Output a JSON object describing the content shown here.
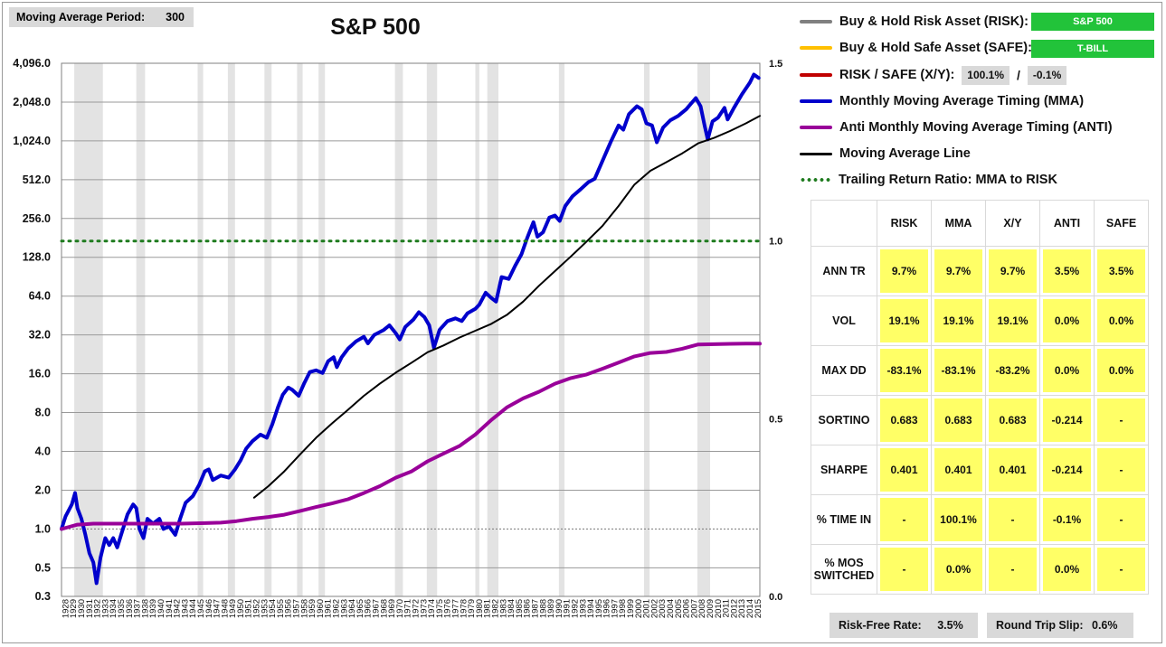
{
  "header": {
    "moving_average_label": "Moving Average Period:",
    "moving_average_value": "300",
    "title": "S&P 500"
  },
  "legend": {
    "items": [
      {
        "label": "Buy & Hold Risk Asset (RISK):",
        "color": "#808080",
        "style": "solid"
      },
      {
        "label": "Buy & Hold Safe Asset (SAFE):",
        "color": "#ffc000",
        "style": "solid"
      },
      {
        "label": "RISK / SAFE (X/Y):",
        "color": "#c00000",
        "style": "solid"
      },
      {
        "label": "Monthly Moving Average Timing (MMA)",
        "color": "#0000cc",
        "style": "solid"
      },
      {
        "label": "Anti Monthly Moving Average Timing (ANTI)",
        "color": "#990099",
        "style": "solid"
      },
      {
        "label": "Moving Average Line",
        "color": "#000000",
        "style": "solid"
      },
      {
        "label": "Trailing Return Ratio: MMA to RISK",
        "color": "#1e7b1e",
        "style": "dotted"
      }
    ],
    "risk_asset": "S&P 500",
    "safe_asset": "T-BILL",
    "xy_risk_pct": "100.1%",
    "xy_safe_pct": "-0.1%",
    "xy_separator": "/"
  },
  "stats": {
    "columns": [
      "RISK",
      "MMA",
      "X/Y",
      "ANTI",
      "SAFE"
    ],
    "rows": [
      {
        "label": "ANN TR",
        "values": [
          "9.7%",
          "9.7%",
          "9.7%",
          "3.5%",
          "3.5%"
        ]
      },
      {
        "label": "VOL",
        "values": [
          "19.1%",
          "19.1%",
          "19.1%",
          "0.0%",
          "0.0%"
        ]
      },
      {
        "label": "MAX DD",
        "values": [
          "-83.1%",
          "-83.1%",
          "-83.2%",
          "0.0%",
          "0.0%"
        ]
      },
      {
        "label": "SORTINO",
        "values": [
          "0.683",
          "0.683",
          "0.683",
          "-0.214",
          "-"
        ]
      },
      {
        "label": "SHARPE",
        "values": [
          "0.401",
          "0.401",
          "0.401",
          "-0.214",
          "-"
        ]
      },
      {
        "label": "% TIME IN",
        "values": [
          "-",
          "100.1%",
          "-",
          "-0.1%",
          "-"
        ]
      },
      {
        "label": "% MOS SWITCHED",
        "values": [
          "-",
          "0.0%",
          "-",
          "0.0%",
          "-"
        ]
      }
    ]
  },
  "footer": {
    "risk_free_label": "Risk-Free Rate:",
    "risk_free_value": "3.5%",
    "slip_label": "Round Trip Slip:",
    "slip_value": "0.6%"
  },
  "chart_data": {
    "type": "line",
    "y_scale": "log2",
    "y_ticks": [
      "0.3",
      "0.5",
      "1.0",
      "2.0",
      "4.0",
      "8.0",
      "16.0",
      "32.0",
      "64.0",
      "128.0",
      "256.0",
      "512.0",
      "1,024.0",
      "2,048.0",
      "4,096.0"
    ],
    "y_tick_values": [
      0.3,
      0.5,
      1,
      2,
      4,
      8,
      16,
      32,
      64,
      128,
      256,
      512,
      1024,
      2048,
      4096
    ],
    "y2_ticks": [
      "0.0",
      "0.5",
      "1.0",
      "1.5"
    ],
    "y2_tick_values": [
      0,
      0.5,
      1.0,
      1.5
    ],
    "ylim": [
      0.3,
      4096
    ],
    "y2lim": [
      0,
      1.5
    ],
    "xlim": [
      1928,
      2015.75
    ],
    "x_ticks": [
      1928,
      1929,
      1930,
      1931,
      1932,
      1933,
      1934,
      1935,
      1936,
      1937,
      1938,
      1939,
      1940,
      1941,
      1942,
      1943,
      1944,
      1945,
      1946,
      1947,
      1948,
      1949,
      1950,
      1951,
      1952,
      1953,
      1954,
      1955,
      1956,
      1957,
      1958,
      1959,
      1960,
      1961,
      1962,
      1963,
      1964,
      1965,
      1966,
      1967,
      1968,
      1969,
      1970,
      1971,
      1972,
      1973,
      1974,
      1975,
      1976,
      1977,
      1978,
      1979,
      1980,
      1981,
      1982,
      1983,
      1984,
      1985,
      1986,
      1987,
      1988,
      1989,
      1990,
      1991,
      1992,
      1993,
      1994,
      1995,
      1996,
      1997,
      1998,
      1999,
      2000,
      2001,
      2002,
      2003,
      2004,
      2005,
      2006,
      2007,
      2008,
      2009,
      2010,
      2011,
      2012,
      2013,
      2014,
      2015
    ],
    "recessions": [
      [
        1929.6,
        1933.2
      ],
      [
        1937.4,
        1938.5
      ],
      [
        1945.1,
        1945.8
      ],
      [
        1948.9,
        1949.8
      ],
      [
        1953.5,
        1954.4
      ],
      [
        1957.6,
        1958.3
      ],
      [
        1960.3,
        1961.1
      ],
      [
        1969.9,
        1970.9
      ],
      [
        1973.9,
        1975.2
      ],
      [
        1980.0,
        1980.5
      ],
      [
        1981.5,
        1982.9
      ],
      [
        1990.5,
        1991.2
      ],
      [
        2001.2,
        2001.9
      ],
      [
        2007.9,
        2009.5
      ]
    ],
    "series": [
      {
        "name": "Monthly Moving Average Timing (MMA)",
        "color": "#0000cc",
        "axis": "left",
        "points": [
          [
            1928,
            1.0
          ],
          [
            1928.5,
            1.25
          ],
          [
            1929.3,
            1.55
          ],
          [
            1929.7,
            1.9
          ],
          [
            1930.0,
            1.45
          ],
          [
            1930.5,
            1.2
          ],
          [
            1931.0,
            0.9
          ],
          [
            1931.5,
            0.65
          ],
          [
            1932.0,
            0.55
          ],
          [
            1932.4,
            0.38
          ],
          [
            1932.9,
            0.6
          ],
          [
            1933.5,
            0.85
          ],
          [
            1934.0,
            0.75
          ],
          [
            1934.5,
            0.85
          ],
          [
            1935.0,
            0.72
          ],
          [
            1935.6,
            0.95
          ],
          [
            1936.3,
            1.3
          ],
          [
            1937.0,
            1.55
          ],
          [
            1937.4,
            1.45
          ],
          [
            1937.8,
            1.0
          ],
          [
            1938.3,
            0.85
          ],
          [
            1938.8,
            1.2
          ],
          [
            1939.5,
            1.1
          ],
          [
            1940.3,
            1.2
          ],
          [
            1940.8,
            1.0
          ],
          [
            1941.5,
            1.05
          ],
          [
            1942.3,
            0.9
          ],
          [
            1942.9,
            1.2
          ],
          [
            1943.6,
            1.6
          ],
          [
            1944.5,
            1.8
          ],
          [
            1945.3,
            2.2
          ],
          [
            1946.0,
            2.8
          ],
          [
            1946.5,
            2.9
          ],
          [
            1947.0,
            2.4
          ],
          [
            1948.0,
            2.6
          ],
          [
            1949.0,
            2.5
          ],
          [
            1949.8,
            2.9
          ],
          [
            1950.5,
            3.4
          ],
          [
            1951.2,
            4.2
          ],
          [
            1952.0,
            4.8
          ],
          [
            1953.0,
            5.4
          ],
          [
            1953.8,
            5.1
          ],
          [
            1954.5,
            6.5
          ],
          [
            1955.2,
            8.8
          ],
          [
            1955.8,
            11.0
          ],
          [
            1956.5,
            12.5
          ],
          [
            1957.0,
            12.0
          ],
          [
            1957.8,
            10.8
          ],
          [
            1958.5,
            13.5
          ],
          [
            1959.2,
            16.5
          ],
          [
            1960.0,
            17.0
          ],
          [
            1960.8,
            16.2
          ],
          [
            1961.5,
            20.0
          ],
          [
            1962.2,
            21.5
          ],
          [
            1962.6,
            18.0
          ],
          [
            1963.2,
            21.5
          ],
          [
            1964.0,
            25.0
          ],
          [
            1965.0,
            28.5
          ],
          [
            1966.0,
            31.0
          ],
          [
            1966.5,
            27.5
          ],
          [
            1967.3,
            32.0
          ],
          [
            1968.5,
            35.0
          ],
          [
            1969.2,
            38.0
          ],
          [
            1970.0,
            33.0
          ],
          [
            1970.5,
            29.5
          ],
          [
            1971.2,
            37.0
          ],
          [
            1972.2,
            42.0
          ],
          [
            1972.9,
            48.0
          ],
          [
            1973.6,
            44.0
          ],
          [
            1974.2,
            38.0
          ],
          [
            1974.8,
            25.5
          ],
          [
            1975.5,
            35.0
          ],
          [
            1976.5,
            41.0
          ],
          [
            1977.5,
            43.0
          ],
          [
            1978.3,
            41.0
          ],
          [
            1979.0,
            47.0
          ],
          [
            1980.0,
            51.0
          ],
          [
            1980.5,
            55.0
          ],
          [
            1981.3,
            68.0
          ],
          [
            1982.0,
            62.0
          ],
          [
            1982.6,
            58.0
          ],
          [
            1983.3,
            90.0
          ],
          [
            1984.2,
            87.0
          ],
          [
            1985.0,
            110.0
          ],
          [
            1985.8,
            135.0
          ],
          [
            1986.5,
            180.0
          ],
          [
            1987.3,
            240.0
          ],
          [
            1987.8,
            185.0
          ],
          [
            1988.5,
            200.0
          ],
          [
            1989.3,
            260.0
          ],
          [
            1990.0,
            270.0
          ],
          [
            1990.6,
            245.0
          ],
          [
            1991.3,
            320.0
          ],
          [
            1992.2,
            380.0
          ],
          [
            1993.2,
            430.0
          ],
          [
            1994.2,
            490.0
          ],
          [
            1995.0,
            520.0
          ],
          [
            1996.0,
            720.0
          ],
          [
            1997.0,
            1000.0
          ],
          [
            1998.0,
            1350.0
          ],
          [
            1998.6,
            1250.0
          ],
          [
            1999.3,
            1650.0
          ],
          [
            2000.3,
            1900.0
          ],
          [
            2000.9,
            1800.0
          ],
          [
            2001.5,
            1400.0
          ],
          [
            2002.2,
            1350.0
          ],
          [
            2002.8,
            1000.0
          ],
          [
            2003.6,
            1300.0
          ],
          [
            2004.5,
            1480.0
          ],
          [
            2005.5,
            1600.0
          ],
          [
            2006.5,
            1800.0
          ],
          [
            2007.7,
            2200.0
          ],
          [
            2008.3,
            1900.0
          ],
          [
            2008.8,
            1350.0
          ],
          [
            2009.2,
            1050.0
          ],
          [
            2009.8,
            1450.0
          ],
          [
            2010.5,
            1550.0
          ],
          [
            2011.3,
            1850.0
          ],
          [
            2011.7,
            1500.0
          ],
          [
            2012.5,
            1850.0
          ],
          [
            2013.5,
            2350.0
          ],
          [
            2014.5,
            2900.0
          ],
          [
            2015.0,
            3350.0
          ],
          [
            2015.6,
            3150.0
          ]
        ]
      },
      {
        "name": "Anti Monthly Moving Average Timing (ANTI)",
        "color": "#990099",
        "axis": "left",
        "points": [
          [
            1928,
            1.0
          ],
          [
            1929,
            1.04
          ],
          [
            1930,
            1.08
          ],
          [
            1931,
            1.09
          ],
          [
            1932,
            1.1
          ],
          [
            1933,
            1.1
          ],
          [
            1934,
            1.1
          ],
          [
            1935,
            1.1
          ],
          [
            1937,
            1.1
          ],
          [
            1940,
            1.1
          ],
          [
            1943,
            1.1
          ],
          [
            1946,
            1.11
          ],
          [
            1948,
            1.12
          ],
          [
            1950,
            1.15
          ],
          [
            1952,
            1.2
          ],
          [
            1954,
            1.24
          ],
          [
            1956,
            1.29
          ],
          [
            1958,
            1.38
          ],
          [
            1960,
            1.48
          ],
          [
            1962,
            1.58
          ],
          [
            1964,
            1.7
          ],
          [
            1966,
            1.9
          ],
          [
            1968,
            2.15
          ],
          [
            1970,
            2.5
          ],
          [
            1972,
            2.8
          ],
          [
            1974,
            3.35
          ],
          [
            1976,
            3.85
          ],
          [
            1978,
            4.4
          ],
          [
            1980,
            5.4
          ],
          [
            1982,
            7.0
          ],
          [
            1984,
            8.8
          ],
          [
            1986,
            10.3
          ],
          [
            1988,
            11.6
          ],
          [
            1990,
            13.4
          ],
          [
            1992,
            14.8
          ],
          [
            1994,
            15.8
          ],
          [
            1996,
            17.5
          ],
          [
            1998,
            19.5
          ],
          [
            2000,
            21.8
          ],
          [
            2002,
            23.2
          ],
          [
            2004,
            23.6
          ],
          [
            2006,
            25.0
          ],
          [
            2008,
            27.0
          ],
          [
            2010,
            27.1
          ],
          [
            2012,
            27.3
          ],
          [
            2014,
            27.4
          ],
          [
            2015.75,
            27.4
          ]
        ]
      },
      {
        "name": "Moving Average Line",
        "color": "#000000",
        "axis": "left",
        "points": [
          [
            1952.2,
            1.75
          ],
          [
            1954,
            2.15
          ],
          [
            1956,
            2.8
          ],
          [
            1958,
            3.8
          ],
          [
            1960,
            5.1
          ],
          [
            1962,
            6.6
          ],
          [
            1964,
            8.4
          ],
          [
            1966,
            10.8
          ],
          [
            1968,
            13.4
          ],
          [
            1970,
            16.3
          ],
          [
            1972,
            19.5
          ],
          [
            1974,
            23.5
          ],
          [
            1976,
            26.5
          ],
          [
            1978,
            30.5
          ],
          [
            1980,
            34.5
          ],
          [
            1982,
            39.0
          ],
          [
            1984,
            46.0
          ],
          [
            1986,
            58.0
          ],
          [
            1988,
            77.0
          ],
          [
            1990,
            100.0
          ],
          [
            1992,
            130.0
          ],
          [
            1994,
            170.0
          ],
          [
            1996,
            225.0
          ],
          [
            1998,
            320.0
          ],
          [
            2000,
            470.0
          ],
          [
            2002,
            600.0
          ],
          [
            2004,
            700.0
          ],
          [
            2006,
            820.0
          ],
          [
            2008,
            980.0
          ],
          [
            2010,
            1080.0
          ],
          [
            2012,
            1220.0
          ],
          [
            2014,
            1400.0
          ],
          [
            2015.75,
            1600.0
          ]
        ]
      },
      {
        "name": "Trailing Return Ratio: MMA to RISK",
        "color": "#1e7b1e",
        "axis": "right",
        "style": "dotted",
        "points": [
          [
            1928,
            1.0
          ],
          [
            2015.75,
            1.0
          ]
        ]
      }
    ]
  }
}
